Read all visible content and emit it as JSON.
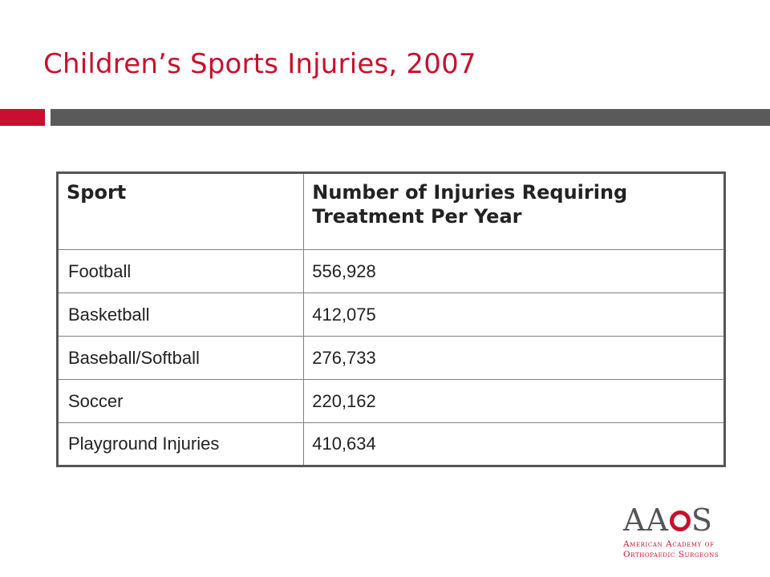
{
  "slide": {
    "title": "Children’s Sports Injuries, 2007"
  },
  "table": {
    "headers": [
      "Sport",
      "Number of Injuries Requiring Treatment Per Year"
    ],
    "rows": [
      {
        "sport": "Football",
        "injuries": "556,928"
      },
      {
        "sport": "Basketball",
        "injuries": "412,075"
      },
      {
        "sport": "Baseball/Softball",
        "injuries": "276,733"
      },
      {
        "sport": "Soccer",
        "injuries": "220,162"
      },
      {
        "sport": "Playground Injuries",
        "injuries": "410,634"
      }
    ]
  },
  "logo": {
    "mark_left": "AA",
    "mark_right": "S",
    "line1": "American Academy of",
    "line2": "Orthopaedic Surgeons"
  },
  "colors": {
    "accent": "#c8102e",
    "rule_gray": "#5a5a5a",
    "table_border": "#555555"
  }
}
